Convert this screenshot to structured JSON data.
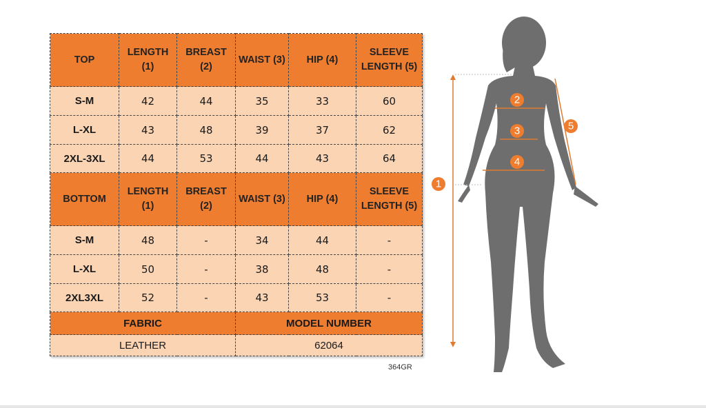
{
  "sections": [
    {
      "header": [
        "TOP",
        "LENGTH (1)",
        "BREAST (2)",
        "WAIST (3)",
        "HIP (4)",
        "SLEEVE LENGTH (5)"
      ],
      "rows": [
        [
          "S-M",
          "42",
          "44",
          "35",
          "33",
          "60"
        ],
        [
          "L-XL",
          "43",
          "48",
          "39",
          "37",
          "62"
        ],
        [
          "2XL-3XL",
          "44",
          "53",
          "44",
          "43",
          "64"
        ]
      ]
    },
    {
      "header": [
        "BOTTOM",
        "LENGTH (1)",
        "BREAST (2)",
        "WAIST (3)",
        "HIP (4)",
        "SLEEVE LENGTH (5)"
      ],
      "rows": [
        [
          "S-M",
          "48",
          "-",
          "34",
          "44",
          "-"
        ],
        [
          "L-XL",
          "50",
          "-",
          "38",
          "48",
          "-"
        ],
        [
          "2XL3XL",
          "52",
          "-",
          "43",
          "53",
          "-"
        ]
      ]
    }
  ],
  "footer": {
    "headers": [
      "FABRIC",
      "MODEL NUMBER"
    ],
    "values": [
      "LEATHER",
      "62064"
    ]
  },
  "code": "364GR",
  "figure": {
    "labels": [
      "1",
      "2",
      "3",
      "4",
      "5"
    ]
  }
}
